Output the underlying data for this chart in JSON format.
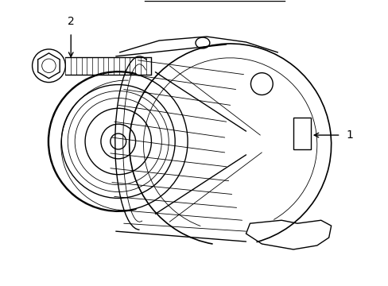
{
  "background_color": "#ffffff",
  "line_color": "#000000",
  "lw": 1.0,
  "lw_thin": 0.6,
  "lw_thick": 1.2,
  "fig_width": 4.89,
  "fig_height": 3.6,
  "dpi": 100,
  "label_1": "1",
  "label_2": "2"
}
